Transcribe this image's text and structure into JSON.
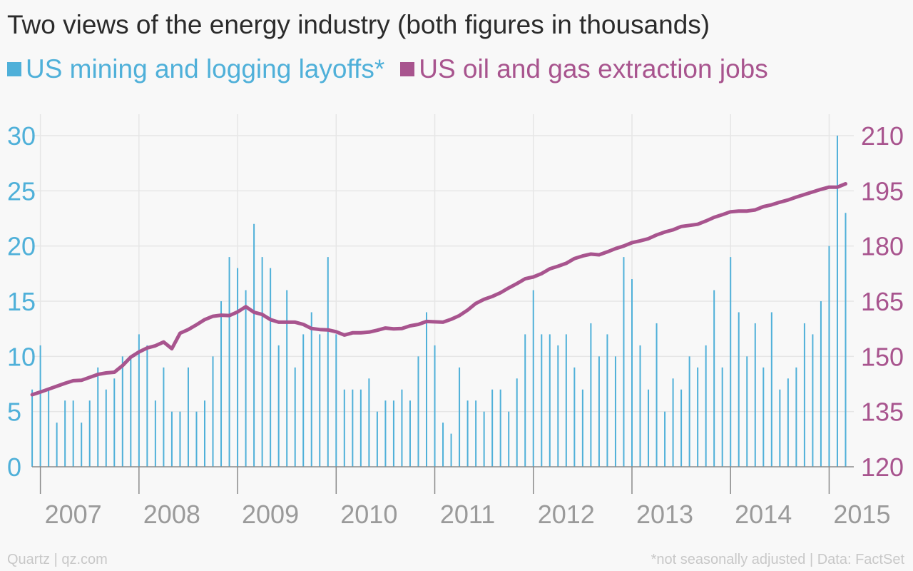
{
  "title": "Two views of the energy industry (both figures in thousands)",
  "legend": [
    {
      "label": "US mining and logging layoffs*",
      "color": "#4fb0d9"
    },
    {
      "label": "US oil and gas extraction jobs",
      "color": "#a8548e"
    }
  ],
  "footer": {
    "source_left": "Quartz | qz.com",
    "source_right": "*not seasonally adjusted | Data: FactSet"
  },
  "colors": {
    "layoffs": "#4fb0d9",
    "jobs": "#a8548e",
    "grid": "#e6e6e6",
    "axis": "#8a8a8a",
    "year_label": "#9a9a9a"
  },
  "chart_data": {
    "type": "bar+line",
    "title": "Two views of the energy industry (both figures in thousands)",
    "grid": true,
    "legend_position": "top-left",
    "x_ticks": [
      "2007",
      "2008",
      "2009",
      "2010",
      "2011",
      "2012",
      "2013",
      "2014",
      "2015"
    ],
    "x_range": [
      2006.916,
      2015.25
    ],
    "y_left": {
      "label": "",
      "ticks": [
        "0",
        "5",
        "10",
        "15",
        "20",
        "25",
        "30"
      ],
      "range": [
        0,
        30
      ]
    },
    "y_right": {
      "label": "",
      "ticks": [
        "120",
        "135",
        "150",
        "165",
        "180",
        "195",
        "210"
      ],
      "range": [
        120,
        210
      ]
    },
    "series": [
      {
        "name": "US mining and logging layoffs*",
        "type": "bar",
        "axis": "left",
        "start": "2006-12",
        "frequency": "monthly",
        "values": [
          7,
          11,
          7,
          4,
          6,
          6,
          4,
          6,
          9,
          7,
          8,
          10,
          10,
          12,
          11,
          6,
          9,
          5,
          5,
          9,
          5,
          6,
          10,
          15,
          19,
          18,
          16,
          22,
          19,
          18,
          11,
          16,
          9,
          12,
          14,
          12,
          19,
          12,
          7,
          7,
          7,
          8,
          5,
          6,
          6,
          7,
          6,
          10,
          14,
          11,
          4,
          3,
          9,
          6,
          6,
          5,
          7,
          7,
          5,
          8,
          12,
          16,
          12,
          12,
          11,
          12,
          9,
          7,
          13,
          10,
          12,
          10,
          19,
          17,
          11,
          7,
          13,
          5,
          8,
          7,
          10,
          9,
          11,
          16,
          9,
          19,
          14,
          10,
          13,
          9,
          14,
          7,
          8,
          9,
          13,
          12,
          15,
          20,
          30,
          23
        ]
      },
      {
        "name": "US oil and gas extraction jobs",
        "type": "line",
        "axis": "right",
        "start": "2006-12",
        "frequency": "monthly",
        "values": [
          139.6,
          140.3,
          141.1,
          141.9,
          142.7,
          143.4,
          143.5,
          144.3,
          145.1,
          145.5,
          145.7,
          147.5,
          149.8,
          151.2,
          152.3,
          152.9,
          153.9,
          152.1,
          156.3,
          157.3,
          158.6,
          160.0,
          160.9,
          161.2,
          161.1,
          162.1,
          163.5,
          162.0,
          161.4,
          160.0,
          159.3,
          159.3,
          159.3,
          158.7,
          157.6,
          157.3,
          157.2,
          156.7,
          155.8,
          156.4,
          156.4,
          156.6,
          157.1,
          157.7,
          157.5,
          157.6,
          158.3,
          158.7,
          159.5,
          159.4,
          159.3,
          160.1,
          161.1,
          162.6,
          164.4,
          165.5,
          166.3,
          167.3,
          168.6,
          169.8,
          171.1,
          171.6,
          172.5,
          173.8,
          174.5,
          175.3,
          176.6,
          177.3,
          177.8,
          177.6,
          178.4,
          179.3,
          180.0,
          180.9,
          181.4,
          182.0,
          183.0,
          183.8,
          184.4,
          185.3,
          185.6,
          185.9,
          186.8,
          187.8,
          188.5,
          189.3,
          189.5,
          189.5,
          189.8,
          190.7,
          191.2,
          191.9,
          192.5,
          193.3,
          194.0,
          194.7,
          195.4,
          196.0,
          196.0,
          196.9
        ]
      }
    ]
  }
}
